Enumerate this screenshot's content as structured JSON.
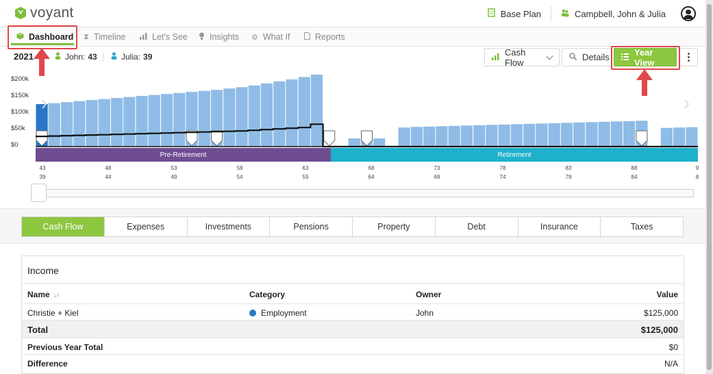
{
  "app": {
    "brand": "voyant"
  },
  "header": {
    "plan_label": "Base Plan",
    "client_label": "Campbell, John & Julia"
  },
  "nav": {
    "tabs": [
      {
        "label": "Dashboard",
        "icon": "cube-icon",
        "active": true
      },
      {
        "label": "Timeline",
        "icon": "hourglass-icon",
        "active": false
      },
      {
        "label": "Let's See",
        "icon": "bar-chart-icon",
        "active": false
      },
      {
        "label": "Insights",
        "icon": "lightbulb-icon",
        "active": false
      },
      {
        "label": "What If",
        "icon": "gears-icon",
        "active": false
      },
      {
        "label": "Reports",
        "icon": "document-icon",
        "active": false
      }
    ]
  },
  "toolbar": {
    "year": "2021",
    "people": [
      {
        "name": "John:",
        "age": "43"
      },
      {
        "name": "Julia:",
        "age": "39"
      }
    ],
    "cashflow_label": "Cash Flow",
    "details_label": "Details",
    "yearview_label": "Year View"
  },
  "chart_data": {
    "type": "bar",
    "y_tick_labels": [
      "$200k",
      "$150k",
      "$100k",
      "$50k",
      "$0"
    ],
    "ylim": [
      0,
      230000
    ],
    "phases": [
      "Pre-Retirement",
      "Retirement"
    ],
    "john_ages": [
      "43",
      "48",
      "53",
      "58",
      "63",
      "68",
      "73",
      "78",
      "83",
      "88",
      "9"
    ],
    "julia_ages": [
      "39",
      "44",
      "49",
      "54",
      "59",
      "64",
      "69",
      "74",
      "79",
      "84",
      "8"
    ],
    "bar_values": [
      125000,
      128000,
      131000,
      134000,
      137000,
      140000,
      143000,
      146000,
      149000,
      152000,
      155000,
      158000,
      161000,
      164000,
      167000,
      171000,
      175000,
      180000,
      186000,
      192000,
      198000,
      205000,
      212000,
      0,
      0,
      24000,
      24000,
      24000,
      0,
      56000,
      58000,
      59000,
      60000,
      61000,
      62000,
      63000,
      64000,
      65000,
      66000,
      67000,
      68000,
      69000,
      70000,
      71000,
      72000,
      73000,
      74000,
      75000,
      76000,
      0,
      55000,
      56000,
      57000
    ],
    "expense_line": [
      30000,
      31000,
      32000,
      33000,
      34000,
      35000,
      36000,
      37000,
      38000,
      39000,
      40000,
      41000,
      42000,
      43000,
      44000,
      45000,
      46000,
      48000,
      50000,
      52000,
      54000,
      56000,
      66000,
      0,
      0,
      0,
      0,
      0,
      0,
      0,
      0,
      0,
      0,
      0,
      0,
      0,
      0,
      0,
      0,
      0,
      0,
      0,
      0,
      0,
      0,
      0,
      0,
      0,
      0,
      0,
      0,
      0,
      0
    ]
  },
  "categories": {
    "tabs": [
      {
        "label": "Cash Flow",
        "active": true
      },
      {
        "label": "Expenses",
        "active": false
      },
      {
        "label": "Investments",
        "active": false
      },
      {
        "label": "Pensions",
        "active": false
      },
      {
        "label": "Property",
        "active": false
      },
      {
        "label": "Debt",
        "active": false
      },
      {
        "label": "Insurance",
        "active": false
      },
      {
        "label": "Taxes",
        "active": false
      }
    ]
  },
  "income": {
    "title": "Income",
    "columns": {
      "name": "Name",
      "category": "Category",
      "owner": "Owner",
      "value": "Value"
    },
    "rows": [
      {
        "name": "Christie + Kiel",
        "category": "Employment",
        "owner": "John",
        "value": "$125,000"
      }
    ],
    "total_label": "Total",
    "total_value": "$125,000",
    "prev_label": "Previous Year Total",
    "prev_value": "$0",
    "diff_label": "Difference",
    "diff_value": "N/A"
  },
  "colors": {
    "accent_green": "#8dc63f",
    "bar_blue": "#8fbce6",
    "bar_highlight": "#2a76c8",
    "pre_retirement": "#6f4d91",
    "retirement": "#1fb0cc",
    "annotation_red": "#e0474c"
  }
}
